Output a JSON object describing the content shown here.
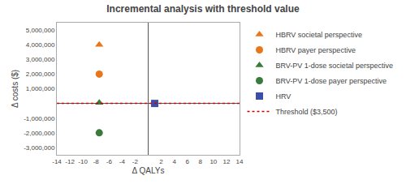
{
  "chart_data": {
    "type": "scatter",
    "title": "Incremental analysis with threshold value",
    "xlabel": "Δ QALYs",
    "ylabel": "Δ costs ($)",
    "xlim": [
      -14,
      14
    ],
    "ylim": [
      -3500000,
      5500000
    ],
    "xticks": [
      -14,
      -12,
      -10,
      -8,
      -6,
      -4,
      -2,
      2,
      4,
      6,
      8,
      10,
      12,
      14
    ],
    "yticks": [
      {
        "value": -3000000,
        "label": "-3,000,000"
      },
      {
        "value": -2000000,
        "label": "-2,000,000"
      },
      {
        "value": -1000000,
        "label": "-1,000,000"
      },
      {
        "value": 1000000,
        "label": "1,000,000"
      },
      {
        "value": 2000000,
        "label": "2,000,000"
      },
      {
        "value": 3000000,
        "label": "3,000,000"
      },
      {
        "value": 4000000,
        "label": "4,000,000"
      },
      {
        "value": 5000000,
        "label": "5,000,000"
      }
    ],
    "grid": false,
    "legend": "right",
    "series": [
      {
        "name": "HBRV societal perspective",
        "color": "#E8761A",
        "marker": "triangle-up",
        "x": [
          -7.5
        ],
        "values": [
          4000000
        ]
      },
      {
        "name": "HBRV payer perspective",
        "color": "#E8761A",
        "marker": "circle",
        "x": [
          -7.5
        ],
        "values": [
          2000000
        ]
      },
      {
        "name": "BRV-PV 1-dose societal perspective",
        "color": "#3A7A3A",
        "marker": "triangle-up",
        "x": [
          -7.5
        ],
        "values": [
          50000
        ]
      },
      {
        "name": "BRV-PV 1-dose payer perspective",
        "color": "#3A7A3A",
        "marker": "circle",
        "x": [
          -7.5
        ],
        "values": [
          -2000000
        ]
      },
      {
        "name": "HRV",
        "color": "#3B4FA8",
        "marker": "square",
        "x": [
          1.0
        ],
        "values": [
          0
        ]
      },
      {
        "name": "Threshold ($3,500)",
        "type": "line",
        "color": "#CC0000",
        "line_style": "dotted",
        "x": [
          -14,
          14
        ],
        "values": [
          0,
          0
        ]
      }
    ]
  }
}
